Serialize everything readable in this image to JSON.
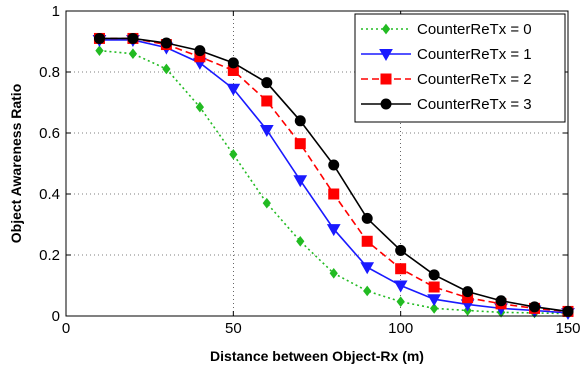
{
  "chart_data": {
    "type": "line",
    "title": "",
    "xlabel": "Distance between Object-Rx (m)",
    "ylabel": "Object Awareness Ratio",
    "xlim": [
      0,
      150
    ],
    "ylim": [
      0,
      1
    ],
    "xticks": [
      0,
      50,
      100,
      150
    ],
    "yticks": [
      0,
      0.2,
      0.4,
      0.6,
      0.8,
      1
    ],
    "xtick_labels": [
      "0",
      "50",
      "100",
      "150"
    ],
    "ytick_labels": [
      "0",
      "0.2",
      "0.4",
      "0.6",
      "0.8",
      "1"
    ],
    "grid": true,
    "legend_position": "top-right",
    "x": [
      10,
      20,
      30,
      40,
      50,
      60,
      70,
      80,
      90,
      100,
      110,
      120,
      130,
      140,
      150
    ],
    "series": [
      {
        "name": "CounterReTx = 0",
        "color": "#22bb22",
        "line_style": "dotted",
        "marker": "diamond",
        "values": [
          0.87,
          0.86,
          0.81,
          0.685,
          0.53,
          0.37,
          0.245,
          0.14,
          0.082,
          0.047,
          0.025,
          0.018,
          0.012,
          0.01,
          0.008
        ]
      },
      {
        "name": "CounterReTx = 1",
        "color": "#1a1aff",
        "line_style": "solid",
        "marker": "triangle-down",
        "values": [
          0.905,
          0.905,
          0.88,
          0.83,
          0.745,
          0.61,
          0.445,
          0.285,
          0.16,
          0.1,
          0.055,
          0.038,
          0.025,
          0.018,
          0.01
        ]
      },
      {
        "name": "CounterReTx = 2",
        "color": "#ff0000",
        "line_style": "dashed",
        "marker": "square",
        "values": [
          0.91,
          0.91,
          0.89,
          0.85,
          0.805,
          0.705,
          0.565,
          0.4,
          0.245,
          0.155,
          0.095,
          0.06,
          0.04,
          0.025,
          0.015
        ]
      },
      {
        "name": "CounterReTx = 3",
        "color": "#000000",
        "line_style": "solid",
        "marker": "circle",
        "values": [
          0.91,
          0.91,
          0.895,
          0.87,
          0.83,
          0.765,
          0.64,
          0.495,
          0.32,
          0.215,
          0.135,
          0.08,
          0.05,
          0.03,
          0.015
        ]
      }
    ]
  }
}
